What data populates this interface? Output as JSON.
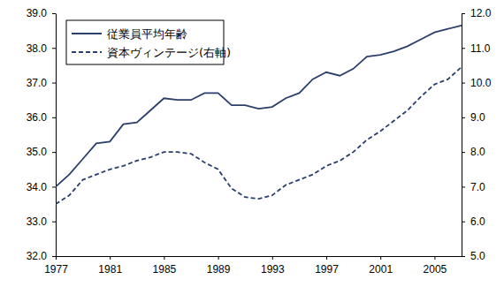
{
  "chart_data": {
    "type": "line",
    "x": [
      1977,
      1978,
      1979,
      1980,
      1981,
      1982,
      1983,
      1984,
      1985,
      1986,
      1987,
      1988,
      1989,
      1990,
      1991,
      1992,
      1993,
      1994,
      1995,
      1996,
      1997,
      1998,
      1999,
      2000,
      2001,
      2002,
      2003,
      2004,
      2005,
      2006,
      2007
    ],
    "series": [
      {
        "name": "従業員平均年齢",
        "color": "#2b3f6b",
        "line_style": "solid",
        "values": [
          34.0,
          34.35,
          34.8,
          35.25,
          35.3,
          35.8,
          35.85,
          36.2,
          36.55,
          36.5,
          36.5,
          36.7,
          36.7,
          36.35,
          36.35,
          36.25,
          36.3,
          36.55,
          36.7,
          37.1,
          37.3,
          37.2,
          37.4,
          37.75,
          37.8,
          37.9,
          38.05,
          38.25,
          38.45,
          38.55,
          38.65
        ]
      },
      {
        "name": "資本ヴィンテージ(右軸)",
        "color": "#2b3f6b",
        "line_style": "dashed",
        "axis": "y2",
        "values": [
          6.5,
          6.75,
          7.2,
          7.35,
          7.5,
          7.6,
          7.75,
          7.85,
          8.0,
          8.0,
          7.95,
          7.7,
          7.5,
          6.95,
          6.7,
          6.65,
          6.75,
          7.05,
          7.2,
          7.35,
          7.6,
          7.75,
          8.0,
          8.35,
          8.6,
          8.9,
          9.2,
          9.6,
          9.95,
          10.1,
          10.45
        ]
      }
    ],
    "xlim": [
      1977,
      2007
    ],
    "xticks": [
      1977,
      1981,
      1985,
      1989,
      1993,
      1997,
      2001,
      2005
    ],
    "ylim": [
      32,
      39
    ],
    "yticks": [
      {
        "value": 32,
        "label": "32.0"
      },
      {
        "value": 33,
        "label": "33.0"
      },
      {
        "value": 34,
        "label": "34.0"
      },
      {
        "value": 35,
        "label": "35.0"
      },
      {
        "value": 36,
        "label": "36.0"
      },
      {
        "value": 37,
        "label": "37.0"
      },
      {
        "value": 38,
        "label": "38.0"
      },
      {
        "value": 39,
        "label": "39.0"
      }
    ],
    "y2lim": [
      5,
      12
    ],
    "y2ticks": [
      {
        "value": 5,
        "label": "5.0"
      },
      {
        "value": 6,
        "label": "6.0"
      },
      {
        "value": 7,
        "label": "7.0"
      },
      {
        "value": 8,
        "label": "8.0"
      },
      {
        "value": 9,
        "label": "9.0"
      },
      {
        "value": 10,
        "label": "10.0"
      },
      {
        "value": 11,
        "label": "11.0"
      },
      {
        "value": 12,
        "label": "12.0"
      }
    ],
    "grid": false,
    "legend": "upper left"
  }
}
